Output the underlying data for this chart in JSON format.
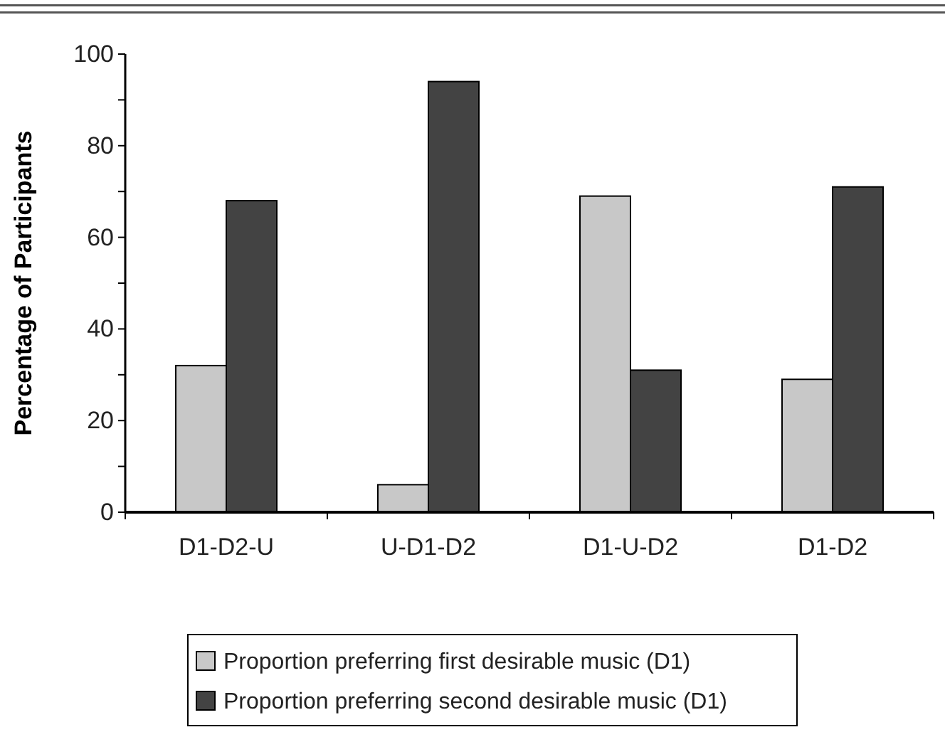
{
  "chart_data": {
    "type": "bar",
    "ylabel": "Percentage of Participants",
    "categories": [
      "D1-D2-U",
      "U-D1-D2",
      "D1-U-D2",
      "D1-D2"
    ],
    "series": [
      {
        "name": "Proportion preferring first desirable music (D1)",
        "color": "#c8c8c8",
        "values": [
          32,
          6,
          69,
          29
        ]
      },
      {
        "name": "Proportion preferring second desirable music (D1)",
        "color": "#434343",
        "values": [
          68,
          94,
          31,
          71
        ]
      }
    ],
    "ylim": [
      0,
      100
    ],
    "yticks": [
      0,
      {
        "value": 10,
        "label": null
      },
      20,
      {
        "value": 30,
        "label": null
      },
      40,
      {
        "value": 50,
        "label": null
      },
      60,
      {
        "value": 70,
        "label": null
      },
      80,
      {
        "value": 90,
        "label": null
      },
      100
    ],
    "grid": false,
    "legend": "bottom"
  }
}
